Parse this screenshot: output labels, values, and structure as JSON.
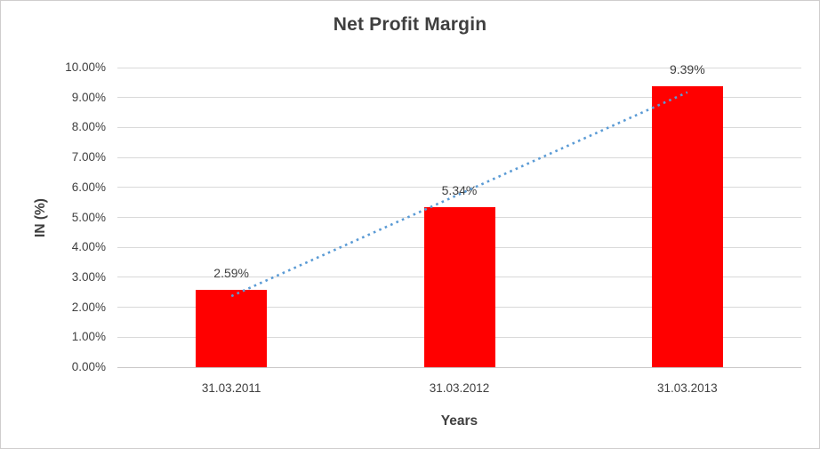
{
  "chart_data": {
    "type": "bar",
    "title": "Net Profit Margin",
    "xlabel": "Years",
    "ylabel": "IN (%)",
    "categories": [
      "31.03.2011",
      "31.03.2012",
      "31.03.2013"
    ],
    "values": [
      2.59,
      5.34,
      9.39
    ],
    "data_labels": [
      "2.59%",
      "5.34%",
      "9.39%"
    ],
    "ylim": [
      0,
      10
    ],
    "ytick_step": 1,
    "ytick_labels": [
      "0.00%",
      "1.00%",
      "2.00%",
      "3.00%",
      "4.00%",
      "5.00%",
      "6.00%",
      "7.00%",
      "8.00%",
      "9.00%",
      "10.00%"
    ],
    "grid": true,
    "legend": "none",
    "bar_color": "#FF0000",
    "label_color": "#404040",
    "gridline_color": "#D9D9D9",
    "trendline": {
      "type": "linear",
      "style": "dotted",
      "color": "#5B9BD5"
    }
  }
}
